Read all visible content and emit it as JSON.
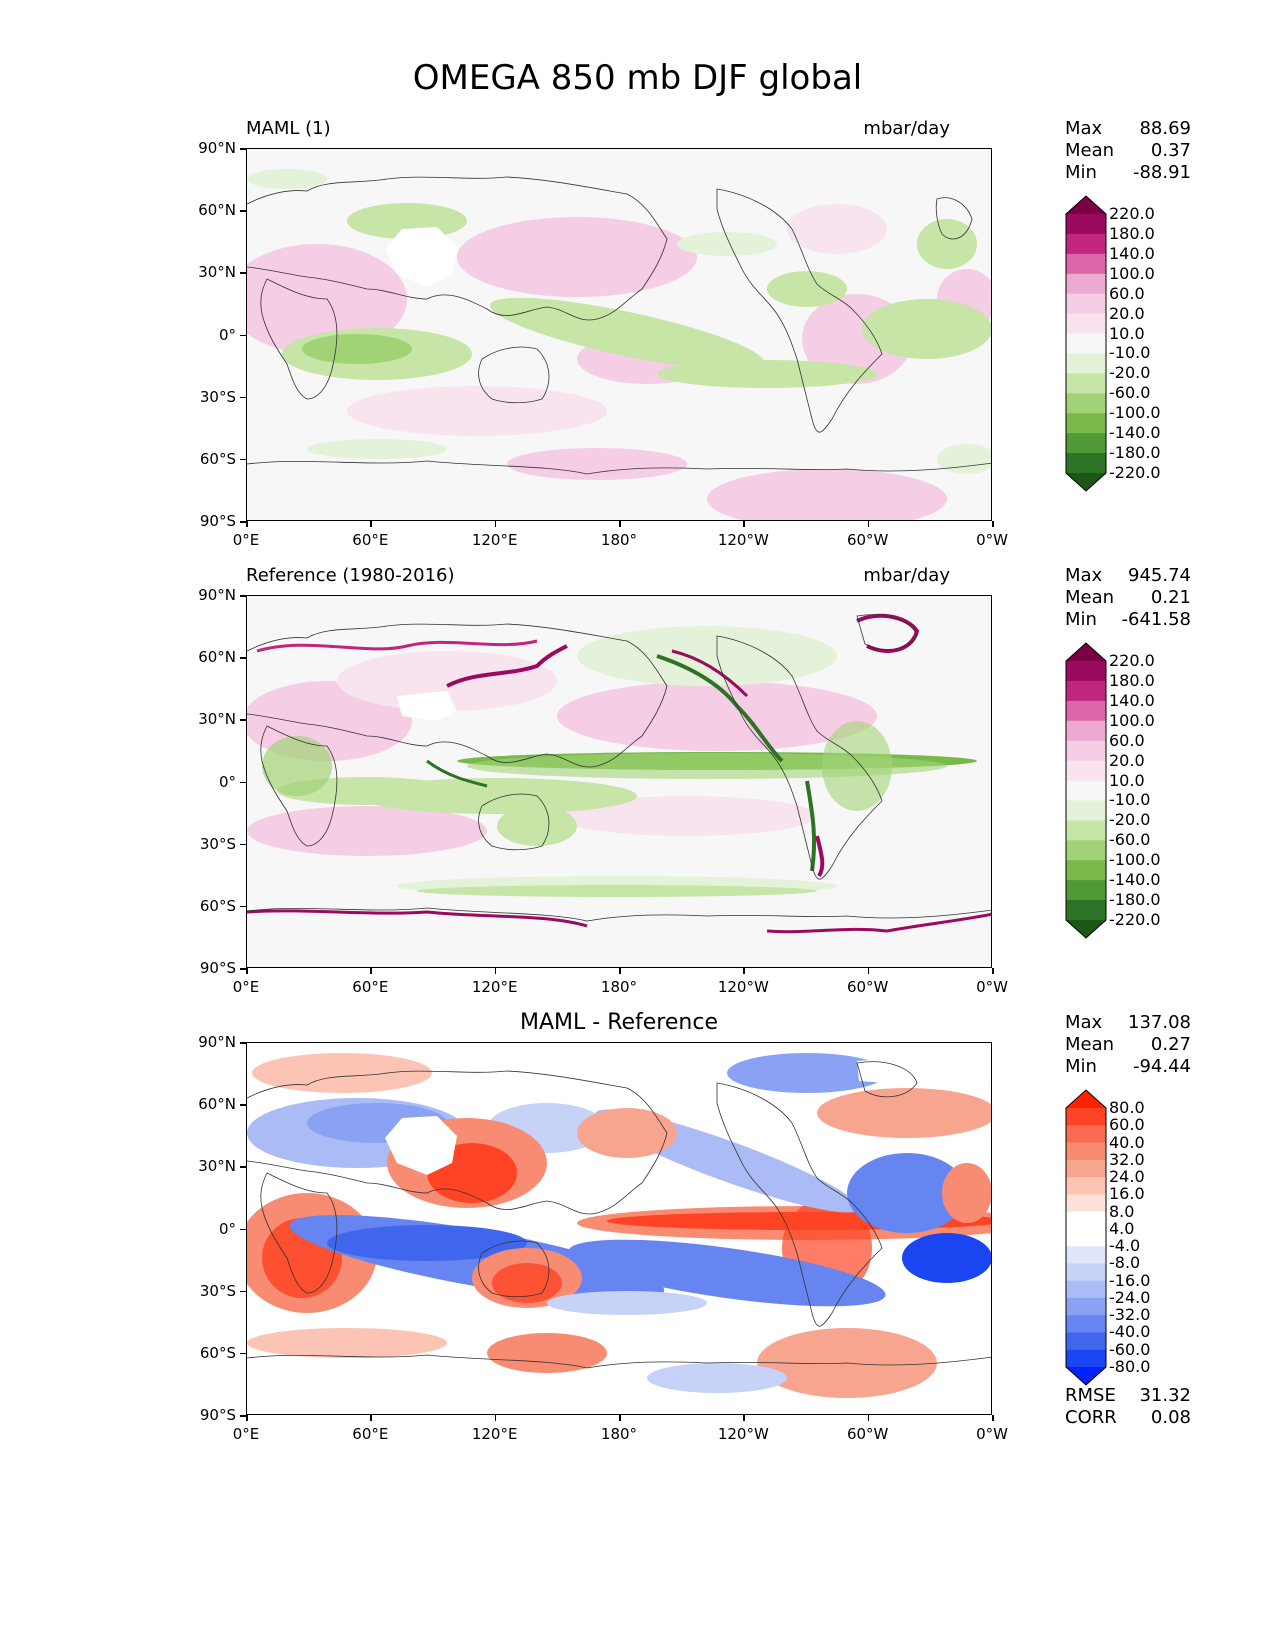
{
  "title": "OMEGA 850 mb DJF global",
  "panels": [
    {
      "left_title": "MAML (1)",
      "right_title": "mbar/day",
      "center_title": "",
      "stats": [
        {
          "label": "Max",
          "value": "88.69"
        },
        {
          "label": "Mean",
          "value": "0.37"
        },
        {
          "label": "Min",
          "value": "-88.91"
        }
      ],
      "cbar": [
        "220.0",
        "180.0",
        "140.0",
        "100.0",
        "60.0",
        "20.0",
        "10.0",
        "-10.0",
        "-20.0",
        "-60.0",
        "-100.0",
        "-140.0",
        "-180.0",
        "-220.0"
      ]
    },
    {
      "left_title": "Reference (1980-2016)",
      "right_title": "mbar/day",
      "center_title": "",
      "stats": [
        {
          "label": "Max",
          "value": "945.74"
        },
        {
          "label": "Mean",
          "value": "0.21"
        },
        {
          "label": "Min",
          "value": "-641.58"
        }
      ],
      "cbar": [
        "220.0",
        "180.0",
        "140.0",
        "100.0",
        "60.0",
        "20.0",
        "10.0",
        "-10.0",
        "-20.0",
        "-60.0",
        "-100.0",
        "-140.0",
        "-180.0",
        "-220.0"
      ]
    },
    {
      "left_title": "",
      "right_title": "",
      "center_title": "MAML - Reference",
      "stats": [
        {
          "label": "Max",
          "value": "137.08"
        },
        {
          "label": "Mean",
          "value": "0.27"
        },
        {
          "label": "Min",
          "value": "-94.44"
        }
      ],
      "cbar": [
        "80.0",
        "60.0",
        "40.0",
        "32.0",
        "24.0",
        "16.0",
        "8.0",
        "4.0",
        "-4.0",
        "-8.0",
        "-16.0",
        "-24.0",
        "-32.0",
        "-40.0",
        "-60.0",
        "-80.0"
      ],
      "metrics": [
        {
          "label": "RMSE",
          "value": "31.32"
        },
        {
          "label": "CORR",
          "value": "0.08"
        }
      ]
    }
  ],
  "lat_ticks": [
    "90°N",
    "60°N",
    "30°N",
    "0°",
    "30°S",
    "60°S",
    "90°S"
  ],
  "lon_ticks": [
    "0°E",
    "60°E",
    "120°E",
    "180°",
    "120°W",
    "60°W",
    "0°W"
  ],
  "colors": {
    "prgn": [
      "#7b0046",
      "#9c0a5f",
      "#c0267e",
      "#dd66a8",
      "#ecaad1",
      "#f5cde5",
      "#f8e4ef",
      "#f7f7f7",
      "#e5f2da",
      "#c6e5a7",
      "#a1d376",
      "#78b94a",
      "#4f9a34",
      "#2d7325",
      "#1d5716"
    ],
    "bwr": [
      "#ff2200",
      "#ff4426",
      "#fb6b4f",
      "#f88c73",
      "#f8a590",
      "#fbc4b4",
      "#fde2d9",
      "#ffffff",
      "#ffffff",
      "#e1e7fb",
      "#c7d2f9",
      "#aabbf6",
      "#8aa2f3",
      "#6685f0",
      "#4166ee",
      "#1a45f0",
      "#0022ff"
    ]
  }
}
